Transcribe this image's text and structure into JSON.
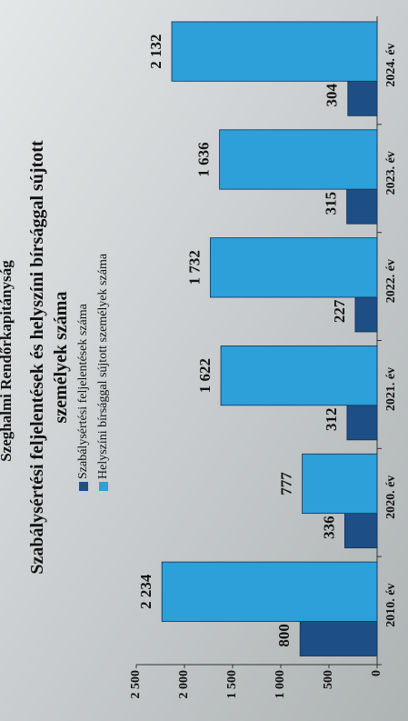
{
  "header": "Szeghalmi Rendőrkapitányság",
  "chart_data": {
    "type": "bar",
    "title": "Szabálysértési feljelentések és helyszíni bírsággal sújtott személyek száma",
    "categories": [
      "2010. év",
      "2020. év",
      "2021. év",
      "2022. év",
      "2023. év",
      "2024. év"
    ],
    "series": [
      {
        "name": "Szabálysértési feljelentések száma",
        "color": "#1d4f86",
        "values": [
          800,
          336,
          312,
          227,
          315,
          304
        ]
      },
      {
        "name": "Helyszíni bírsággal sújtott személyek száma",
        "color": "#2d9fd9",
        "values": [
          2234,
          777,
          1622,
          1732,
          1636,
          2132
        ],
        "value_labels": [
          "2 234",
          "777",
          "1 622",
          "1 732",
          "1 636",
          "2 132"
        ]
      }
    ],
    "ylim": [
      0,
      2500
    ],
    "yticks": [
      0,
      500,
      {
        "value": 1000,
        "label": "1 000"
      },
      {
        "value": 1500,
        "label": "1 500"
      },
      {
        "value": 2000,
        "label": "2 000"
      },
      {
        "value": 2500,
        "label": "2 500"
      }
    ]
  }
}
